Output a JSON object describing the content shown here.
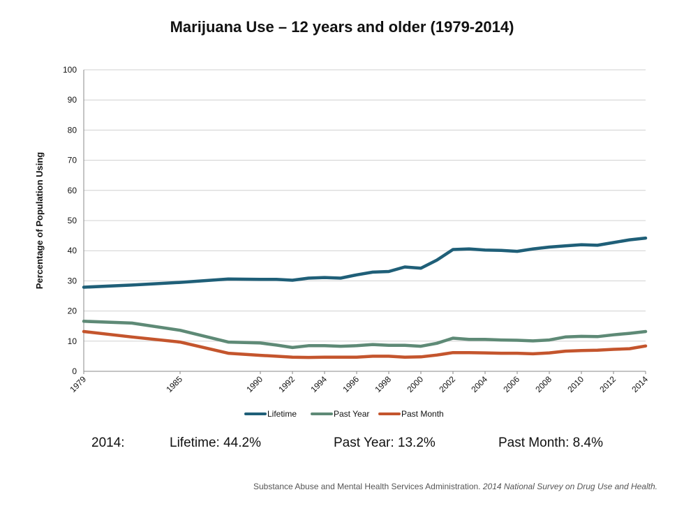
{
  "chart_data": {
    "type": "line",
    "title": "Marijuana Use – 12 years and older (1979-2014)",
    "xlabel": "",
    "ylabel": "Percentage of Population Using",
    "ylim": [
      0,
      100
    ],
    "yticks": [
      0,
      10,
      20,
      30,
      40,
      50,
      60,
      70,
      80,
      90,
      100
    ],
    "xticks": [
      "1979",
      "1985",
      "1990",
      "1992",
      "1994",
      "1996",
      "1998",
      "2000",
      "2002",
      "2004",
      "2006",
      "2008",
      "2010",
      "2012",
      "2014"
    ],
    "grid": true,
    "legend_position": "bottom",
    "x": [
      "1979",
      "1982",
      "1985",
      "1988",
      "1990",
      "1991",
      "1992",
      "1993",
      "1994",
      "1995",
      "1996",
      "1997",
      "1998",
      "1999",
      "2000",
      "2001",
      "2002",
      "2003",
      "2004",
      "2005",
      "2006",
      "2007",
      "2008",
      "2009",
      "2010",
      "2011",
      "2012",
      "2013",
      "2014"
    ],
    "series": [
      {
        "name": "Lifetime",
        "color": "#1f5f78",
        "values": [
          27.9,
          28.6,
          29.5,
          30.6,
          30.5,
          30.5,
          30.2,
          30.9,
          31.1,
          30.9,
          32.0,
          32.9,
          33.1,
          34.6,
          34.2,
          36.9,
          40.4,
          40.6,
          40.2,
          40.1,
          39.8,
          40.6,
          41.2,
          41.6,
          42.0,
          41.8,
          42.7,
          43.6,
          44.2
        ]
      },
      {
        "name": "Past Year",
        "color": "#5e8a76",
        "values": [
          16.6,
          16.0,
          13.6,
          9.7,
          9.4,
          8.7,
          7.9,
          8.5,
          8.5,
          8.3,
          8.5,
          8.9,
          8.6,
          8.6,
          8.3,
          9.3,
          11.0,
          10.6,
          10.6,
          10.4,
          10.3,
          10.1,
          10.4,
          11.4,
          11.6,
          11.5,
          12.1,
          12.6,
          13.2
        ]
      },
      {
        "name": "Past Month",
        "color": "#c4552d",
        "values": [
          13.2,
          11.4,
          9.7,
          6.0,
          5.3,
          5.0,
          4.7,
          4.6,
          4.7,
          4.7,
          4.7,
          5.0,
          5.0,
          4.7,
          4.8,
          5.4,
          6.2,
          6.2,
          6.1,
          6.0,
          6.0,
          5.8,
          6.1,
          6.7,
          6.9,
          7.0,
          7.3,
          7.5,
          8.4
        ]
      }
    ]
  },
  "summary": {
    "year": "2014:",
    "lifetime": "Lifetime: 44.2%",
    "past_year": "Past Year: 13.2%",
    "past_month": "Past Month: 8.4%"
  },
  "source": {
    "text": "Substance Abuse and Mental Health Services Administration. ",
    "italic": "2014 National Survey on Drug Use and Health."
  }
}
